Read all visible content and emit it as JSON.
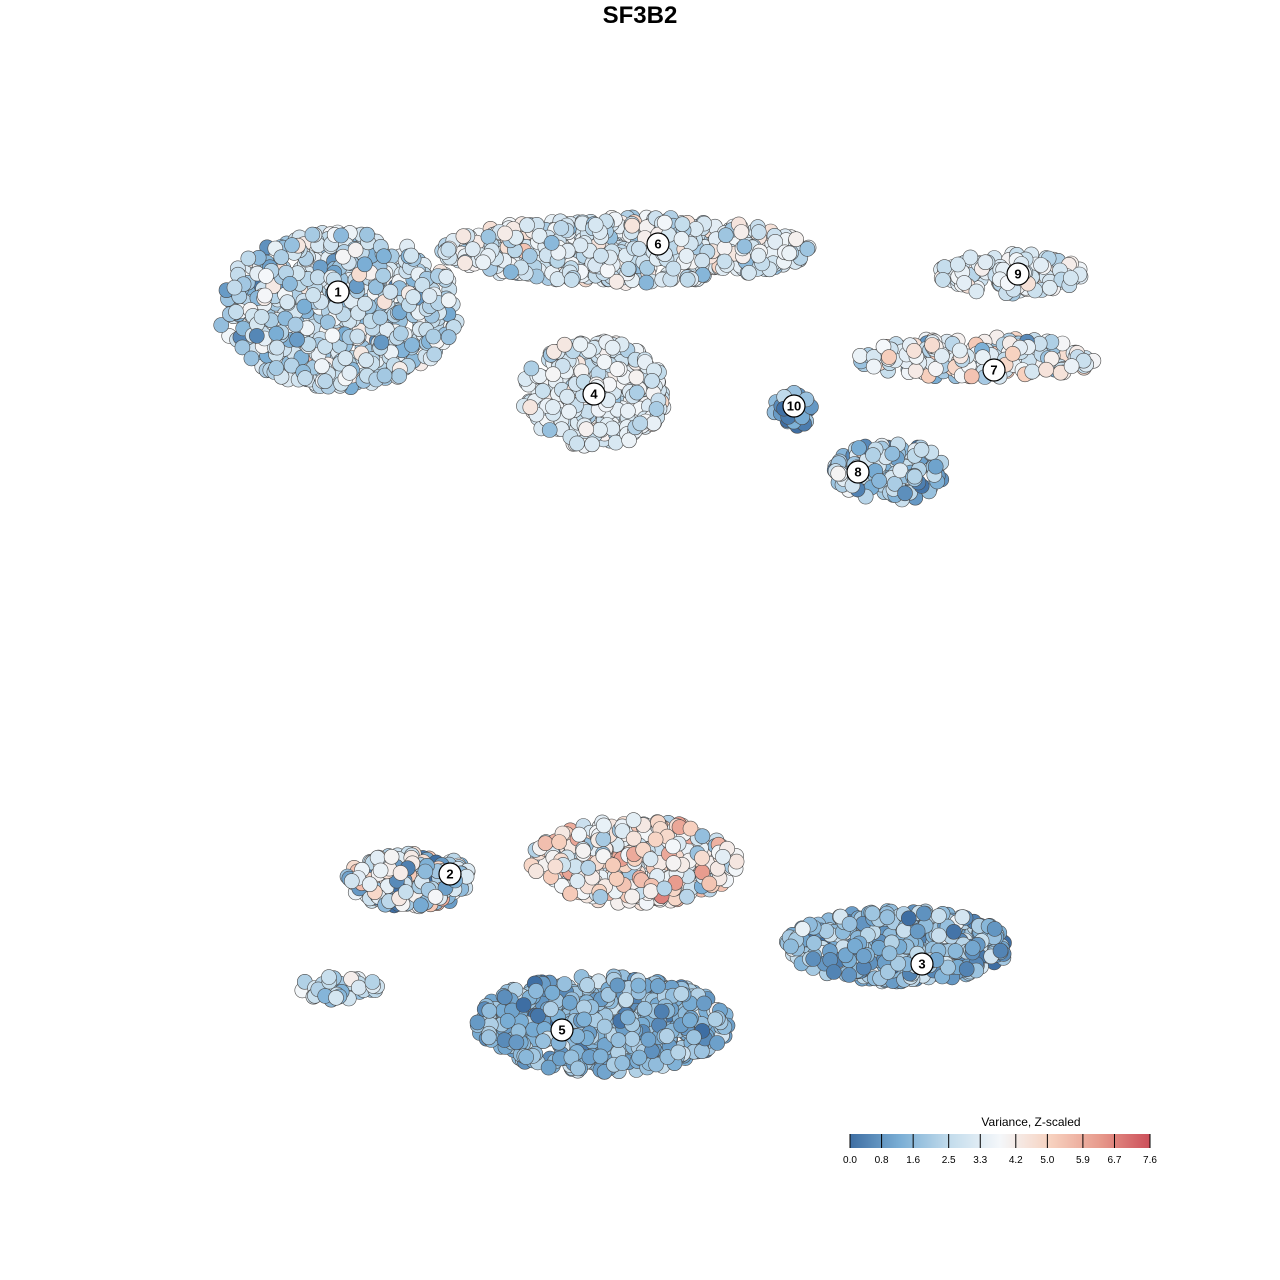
{
  "chart_data": {
    "type": "scatter",
    "title": "SF3B2",
    "xlabel": "",
    "ylabel": "",
    "grid": false,
    "legend_position": "bottom-right",
    "colorbar": {
      "title": "Variance, Z-scaled",
      "ticks": [
        "0.0",
        "0.8",
        "1.6",
        "2.5",
        "3.3",
        "4.2",
        "5.0",
        "5.9",
        "6.7",
        "7.6"
      ],
      "range": [
        0.0,
        7.6
      ],
      "colors": [
        "#3e6ea3",
        "#7aaed5",
        "#c3dcec",
        "#f4f7fa",
        "#f7d2c0",
        "#e79a8c",
        "#cc4f5a"
      ]
    },
    "clusters": [
      {
        "label": "1",
        "x": 1.1,
        "y": 7.3
      },
      {
        "label": "2",
        "x": 2.5,
        "y": -2.4
      },
      {
        "label": "3",
        "x": 8.4,
        "y": -3.9
      },
      {
        "label": "4",
        "x": 4.3,
        "y": 5.6
      },
      {
        "label": "5",
        "x": 3.9,
        "y": -5.0
      },
      {
        "label": "6",
        "x": 5.1,
        "y": 8.1
      },
      {
        "label": "7",
        "x": 9.3,
        "y": 6.0
      },
      {
        "label": "8",
        "x": 7.6,
        "y": 4.3
      },
      {
        "label": "9",
        "x": 9.6,
        "y": 7.6
      },
      {
        "label": "10",
        "x": 6.8,
        "y": 5.4
      }
    ],
    "regions": [
      {
        "cluster": "1",
        "cx": 1.1,
        "cy": 7.0,
        "rx": 1.5,
        "ry": 1.3,
        "n": 700,
        "mean": 2.6,
        "sd": 0.9
      },
      {
        "cluster": "6",
        "cx": 4.7,
        "cy": 8.0,
        "rx": 2.3,
        "ry": 0.55,
        "n": 600,
        "mean": 3.1,
        "sd": 0.7
      },
      {
        "cluster": "4",
        "cx": 4.3,
        "cy": 5.6,
        "rx": 0.9,
        "ry": 0.9,
        "n": 350,
        "mean": 3.2,
        "sd": 0.6
      },
      {
        "cluster": "10",
        "cx": 6.8,
        "cy": 5.35,
        "rx": 0.25,
        "ry": 0.3,
        "n": 40,
        "mean": 1.0,
        "sd": 0.6
      },
      {
        "cluster": "9",
        "cx": 9.5,
        "cy": 7.6,
        "rx": 0.9,
        "ry": 0.35,
        "n": 150,
        "mean": 3.4,
        "sd": 0.6
      },
      {
        "cluster": "7",
        "cx": 9.1,
        "cy": 6.2,
        "rx": 1.5,
        "ry": 0.35,
        "n": 220,
        "mean": 3.5,
        "sd": 1.0
      },
      {
        "cluster": "8",
        "cx": 8.0,
        "cy": 4.3,
        "rx": 0.7,
        "ry": 0.5,
        "n": 170,
        "mean": 2.0,
        "sd": 0.9
      },
      {
        "cluster": "2",
        "cx": 2.0,
        "cy": -2.5,
        "rx": 0.8,
        "ry": 0.45,
        "n": 240,
        "mean": 2.8,
        "sd": 1.4
      },
      {
        "cluster": "2",
        "cx": 4.8,
        "cy": -2.2,
        "rx": 1.3,
        "ry": 0.7,
        "n": 420,
        "mean": 4.0,
        "sd": 1.1
      },
      {
        "cluster": "3",
        "cx": 8.1,
        "cy": -3.6,
        "rx": 1.4,
        "ry": 0.6,
        "n": 600,
        "mean": 1.6,
        "sd": 0.8
      },
      {
        "cluster": "5",
        "cx": 4.4,
        "cy": -4.9,
        "rx": 1.6,
        "ry": 0.8,
        "n": 650,
        "mean": 1.5,
        "sd": 0.6
      },
      {
        "cluster": "5",
        "cx": 1.1,
        "cy": -4.3,
        "rx": 0.5,
        "ry": 0.2,
        "n": 40,
        "mean": 2.6,
        "sd": 0.6
      }
    ]
  }
}
